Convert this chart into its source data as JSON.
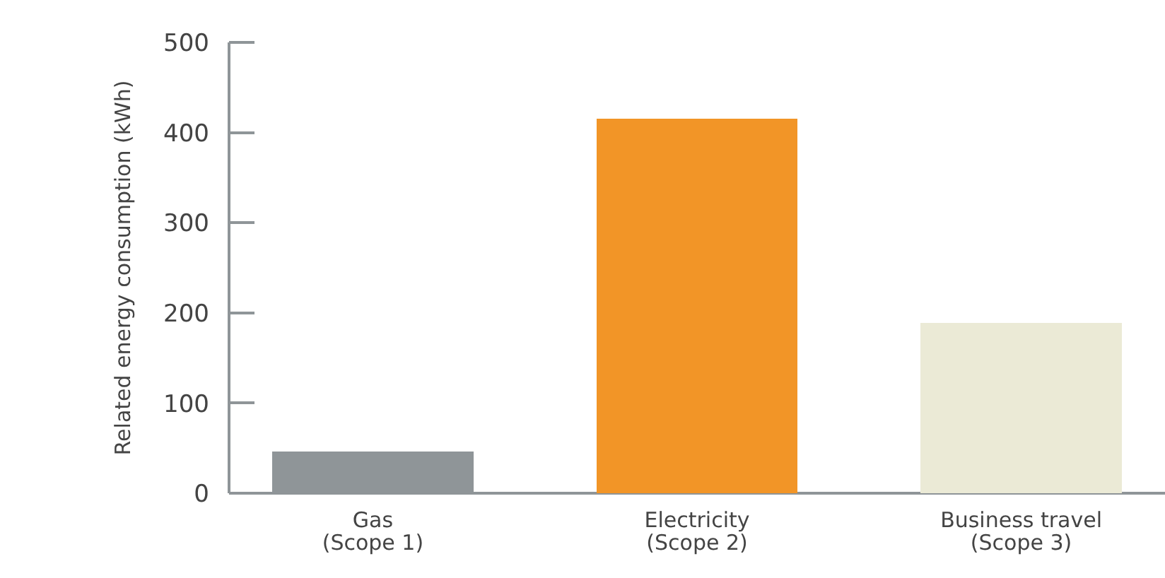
{
  "chart_data": {
    "type": "bar",
    "ylabel": "Related energy consumption (kWh)",
    "categories": [
      "Gas\n(Scope 1)",
      "Electricity\n(Scope 2)",
      "Business travel\n(Scope 3)"
    ],
    "values": [
      46,
      415,
      189
    ],
    "colors": [
      "#8f9598",
      "#f29527",
      "#ebead6"
    ],
    "ylim": [
      0,
      500
    ],
    "yticks": [
      0,
      100,
      200,
      300,
      400,
      500
    ],
    "grid": false
  }
}
